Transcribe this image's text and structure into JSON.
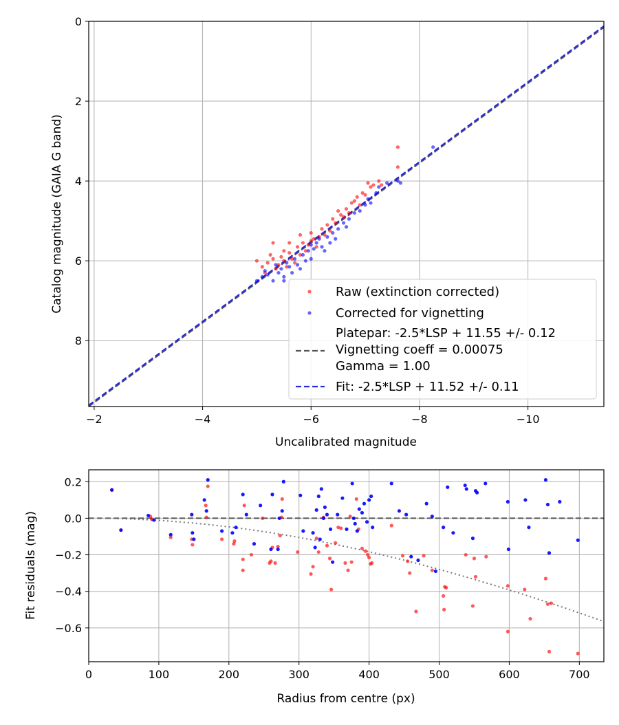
{
  "chart_data": [
    {
      "type": "scatter",
      "xlabel": "Uncalibrated magnitude",
      "ylabel": "Catalog magnitude (GAIA G band)",
      "xlim": [
        -1.9,
        -11.4
      ],
      "ylim": [
        9.65,
        0
      ],
      "xticks": [
        -2,
        -4,
        -6,
        -8,
        -10
      ],
      "yticks": [
        0,
        2,
        4,
        6,
        8
      ],
      "grid": true,
      "legend_position": "lower-right",
      "legend": {
        "raw_label": "Raw (extinction corrected)",
        "corrected_label": "Corrected for vignetting",
        "platepar_line1": "Platepar: -2.5*LSP + 11.55 +/- 0.12",
        "platepar_line2": "Vignetting coeff = 0.00075",
        "platepar_line3": "Gamma = 1.00",
        "fit_label": "Fit: -2.5*LSP + 11.52 +/- 0.11"
      },
      "colors": {
        "raw": "#ff0000",
        "corrected": "#0000ff",
        "platepar": "#555555",
        "fit": "#2828dc"
      },
      "lines": [
        {
          "name": "platepar",
          "slope": 1.0,
          "intercept": 11.55,
          "style": "dashed"
        },
        {
          "name": "fit",
          "slope": 1.0,
          "intercept": 11.52,
          "style": "dashed"
        }
      ],
      "series": [
        {
          "name": "Raw (extinction corrected)",
          "points": [
            [
              -5.0,
              6.0
            ],
            [
              -5.1,
              6.15
            ],
            [
              -5.15,
              6.3
            ],
            [
              -5.2,
              6.05
            ],
            [
              -5.25,
              5.85
            ],
            [
              -5.3,
              5.95
            ],
            [
              -5.35,
              6.2
            ],
            [
              -5.4,
              6.1
            ],
            [
              -5.45,
              5.9
            ],
            [
              -5.5,
              6.0
            ],
            [
              -5.5,
              5.75
            ],
            [
              -5.55,
              6.15
            ],
            [
              -5.6,
              5.8
            ],
            [
              -5.65,
              5.95
            ],
            [
              -5.7,
              6.05
            ],
            [
              -5.75,
              5.65
            ],
            [
              -5.8,
              5.85
            ],
            [
              -5.85,
              5.55
            ],
            [
              -5.9,
              5.75
            ],
            [
              -5.95,
              5.6
            ],
            [
              -6.0,
              5.5
            ],
            [
              -6.0,
              5.3
            ],
            [
              -6.05,
              5.45
            ],
            [
              -6.1,
              5.65
            ],
            [
              -6.15,
              5.4
            ],
            [
              -6.2,
              5.2
            ],
            [
              -6.25,
              5.35
            ],
            [
              -6.3,
              5.1
            ],
            [
              -6.35,
              5.25
            ],
            [
              -6.4,
              4.95
            ],
            [
              -6.45,
              5.05
            ],
            [
              -6.5,
              4.75
            ],
            [
              -6.55,
              4.85
            ],
            [
              -6.6,
              4.9
            ],
            [
              -6.65,
              4.7
            ],
            [
              -6.7,
              4.8
            ],
            [
              -6.75,
              4.55
            ],
            [
              -6.8,
              4.5
            ],
            [
              -6.85,
              4.4
            ],
            [
              -6.9,
              4.6
            ],
            [
              -6.95,
              4.3
            ],
            [
              -7.0,
              4.35
            ],
            [
              -7.05,
              4.05
            ],
            [
              -7.1,
              4.15
            ],
            [
              -7.15,
              4.1
            ],
            [
              -7.25,
              4.0
            ],
            [
              -7.3,
              4.1
            ],
            [
              -7.6,
              3.15
            ],
            [
              -7.6,
              3.65
            ],
            [
              -5.3,
              5.55
            ],
            [
              -5.6,
              5.55
            ],
            [
              -5.8,
              5.35
            ]
          ]
        },
        {
          "name": "Corrected for vignetting",
          "points": [
            [
              -5.0,
              6.5
            ],
            [
              -5.1,
              6.4
            ],
            [
              -5.15,
              6.25
            ],
            [
              -5.2,
              6.35
            ],
            [
              -5.3,
              6.5
            ],
            [
              -5.35,
              6.1
            ],
            [
              -5.4,
              6.3
            ],
            [
              -5.45,
              6.2
            ],
            [
              -5.5,
              6.4
            ],
            [
              -5.55,
              6.05
            ],
            [
              -5.6,
              6.15
            ],
            [
              -5.65,
              6.3
            ],
            [
              -5.7,
              5.95
            ],
            [
              -5.75,
              6.1
            ],
            [
              -5.8,
              6.2
            ],
            [
              -5.85,
              5.85
            ],
            [
              -5.9,
              6.0
            ],
            [
              -5.95,
              5.75
            ],
            [
              -6.0,
              5.6
            ],
            [
              -6.05,
              5.7
            ],
            [
              -6.1,
              5.55
            ],
            [
              -6.15,
              5.45
            ],
            [
              -6.2,
              5.65
            ],
            [
              -6.3,
              5.4
            ],
            [
              -6.35,
              5.55
            ],
            [
              -6.4,
              5.3
            ],
            [
              -6.45,
              5.45
            ],
            [
              -6.5,
              5.2
            ],
            [
              -6.6,
              5.05
            ],
            [
              -6.65,
              5.15
            ],
            [
              -6.7,
              4.95
            ],
            [
              -6.8,
              4.8
            ],
            [
              -6.9,
              4.75
            ],
            [
              -7.0,
              4.6
            ],
            [
              -7.05,
              4.45
            ],
            [
              -7.1,
              4.55
            ],
            [
              -7.2,
              4.3
            ],
            [
              -7.25,
              4.15
            ],
            [
              -7.4,
              4.05
            ],
            [
              -7.6,
              4.0
            ],
            [
              -7.65,
              4.05
            ],
            [
              -8.25,
              3.15
            ],
            [
              -5.5,
              6.5
            ],
            [
              -6.0,
              5.95
            ],
            [
              -6.25,
              5.75
            ]
          ]
        }
      ]
    },
    {
      "type": "scatter",
      "xlabel": "Radius from centre (px)",
      "ylabel": "Fit residuals (mag)",
      "xlim": [
        0,
        735
      ],
      "ylim": [
        -0.785,
        0.265
      ],
      "xticks": [
        0,
        100,
        200,
        300,
        400,
        500,
        600,
        700
      ],
      "yticks": [
        0.2,
        0.0,
        -0.2,
        -0.4,
        -0.6
      ],
      "ytick_labels": [
        "0.2",
        "0.0",
        "−0.2",
        "−0.4",
        "−0.6"
      ],
      "xtick_labels": [
        "0",
        "100",
        "200",
        "300",
        "400",
        "500",
        "600",
        "700"
      ],
      "grid": true,
      "colors": {
        "raw": "#ff0000",
        "corrected": "#0000ff",
        "zero_line": "#555555",
        "model": "#777777"
      },
      "zero_line": 0.0,
      "vignetting_model": {
        "coeff": 0.00075,
        "style": "dotted"
      },
      "series": [
        {
          "name": "Raw (extinction corrected)",
          "points": [
            [
              33,
              0.155
            ],
            [
              46,
              -0.065
            ],
            [
              88,
              0.01
            ],
            [
              90,
              -0.005
            ],
            [
              117,
              -0.105
            ],
            [
              147,
              -0.115
            ],
            [
              148,
              -0.145
            ],
            [
              167,
              0.07
            ],
            [
              168,
              0.005
            ],
            [
              170,
              0.175
            ],
            [
              190,
              -0.115
            ],
            [
              207,
              -0.14
            ],
            [
              208,
              -0.125
            ],
            [
              220,
              -0.225
            ],
            [
              220,
              -0.285
            ],
            [
              222,
              0.07
            ],
            [
              232,
              -0.2
            ],
            [
              248,
              0.0
            ],
            [
              258,
              -0.245
            ],
            [
              260,
              -0.235
            ],
            [
              262,
              -0.16
            ],
            [
              266,
              -0.245
            ],
            [
              270,
              -0.155
            ],
            [
              273,
              -0.095
            ],
            [
              275,
              0.005
            ],
            [
              276,
              0.105
            ],
            [
              298,
              -0.185
            ],
            [
              317,
              -0.305
            ],
            [
              320,
              -0.265
            ],
            [
              325,
              -0.11
            ],
            [
              328,
              -0.185
            ],
            [
              335,
              0.005
            ],
            [
              340,
              -0.15
            ],
            [
              344,
              -0.22
            ],
            [
              346,
              -0.39
            ],
            [
              352,
              -0.135
            ],
            [
              356,
              -0.05
            ],
            [
              360,
              -0.055
            ],
            [
              366,
              -0.245
            ],
            [
              370,
              -0.285
            ],
            [
              373,
              0.01
            ],
            [
              375,
              -0.24
            ],
            [
              382,
              0.105
            ],
            [
              385,
              -0.06
            ],
            [
              390,
              -0.165
            ],
            [
              395,
              -0.18
            ],
            [
              398,
              -0.2
            ],
            [
              400,
              -0.215
            ],
            [
              402,
              -0.25
            ],
            [
              404,
              -0.245
            ],
            [
              432,
              -0.04
            ],
            [
              448,
              -0.205
            ],
            [
              455,
              -0.235
            ],
            [
              458,
              -0.3
            ],
            [
              467,
              -0.51
            ],
            [
              478,
              -0.205
            ],
            [
              490,
              -0.285
            ],
            [
              506,
              -0.425
            ],
            [
              507,
              -0.5
            ],
            [
              508,
              -0.375
            ],
            [
              510,
              -0.38
            ],
            [
              538,
              -0.2
            ],
            [
              548,
              -0.48
            ],
            [
              550,
              -0.22
            ],
            [
              552,
              -0.32
            ],
            [
              567,
              -0.21
            ],
            [
              598,
              -0.62
            ],
            [
              598,
              -0.37
            ],
            [
              622,
              -0.39
            ],
            [
              630,
              -0.55
            ],
            [
              652,
              -0.33
            ],
            [
              655,
              -0.47
            ],
            [
              657,
              -0.73
            ],
            [
              660,
              -0.465
            ],
            [
              698,
              -0.74
            ]
          ]
        },
        {
          "name": "Corrected for vignetting",
          "points": [
            [
              33,
              0.155
            ],
            [
              46,
              -0.065
            ],
            [
              85,
              0.015
            ],
            [
              93,
              -0.01
            ],
            [
              117,
              -0.09
            ],
            [
              147,
              0.02
            ],
            [
              148,
              -0.08
            ],
            [
              150,
              -0.115
            ],
            [
              165,
              0.1
            ],
            [
              168,
              0.04
            ],
            [
              170,
              0.21
            ],
            [
              190,
              -0.07
            ],
            [
              205,
              -0.08
            ],
            [
              210,
              -0.05
            ],
            [
              220,
              0.13
            ],
            [
              225,
              0.02
            ],
            [
              236,
              -0.14
            ],
            [
              245,
              0.07
            ],
            [
              260,
              -0.17
            ],
            [
              262,
              0.13
            ],
            [
              270,
              -0.17
            ],
            [
              272,
              0.0
            ],
            [
              276,
              0.04
            ],
            [
              278,
              0.2
            ],
            [
              302,
              0.125
            ],
            [
              306,
              -0.07
            ],
            [
              320,
              -0.08
            ],
            [
              323,
              -0.16
            ],
            [
              325,
              0.045
            ],
            [
              328,
              0.12
            ],
            [
              330,
              -0.115
            ],
            [
              332,
              0.16
            ],
            [
              335,
              0.0
            ],
            [
              337,
              0.06
            ],
            [
              340,
              0.02
            ],
            [
              345,
              -0.06
            ],
            [
              348,
              -0.24
            ],
            [
              355,
              0.02
            ],
            [
              362,
              0.11
            ],
            [
              368,
              -0.06
            ],
            [
              376,
              0.19
            ],
            [
              378,
              0.0
            ],
            [
              380,
              -0.03
            ],
            [
              383,
              -0.07
            ],
            [
              386,
              0.05
            ],
            [
              390,
              0.03
            ],
            [
              393,
              0.08
            ],
            [
              397,
              -0.02
            ],
            [
              400,
              0.1
            ],
            [
              403,
              0.12
            ],
            [
              405,
              -0.05
            ],
            [
              432,
              0.19
            ],
            [
              443,
              0.04
            ],
            [
              453,
              0.02
            ],
            [
              460,
              -0.21
            ],
            [
              470,
              -0.23
            ],
            [
              482,
              0.08
            ],
            [
              490,
              0.01
            ],
            [
              495,
              -0.29
            ],
            [
              506,
              -0.05
            ],
            [
              512,
              0.17
            ],
            [
              520,
              -0.08
            ],
            [
              537,
              0.18
            ],
            [
              539,
              0.16
            ],
            [
              548,
              -0.11
            ],
            [
              552,
              0.15
            ],
            [
              554,
              0.14
            ],
            [
              566,
              0.19
            ],
            [
              598,
              0.09
            ],
            [
              599,
              -0.17
            ],
            [
              623,
              0.1
            ],
            [
              628,
              -0.05
            ],
            [
              652,
              0.21
            ],
            [
              655,
              0.075
            ],
            [
              657,
              -0.19
            ],
            [
              672,
              0.09
            ],
            [
              698,
              -0.12
            ]
          ]
        }
      ]
    }
  ]
}
